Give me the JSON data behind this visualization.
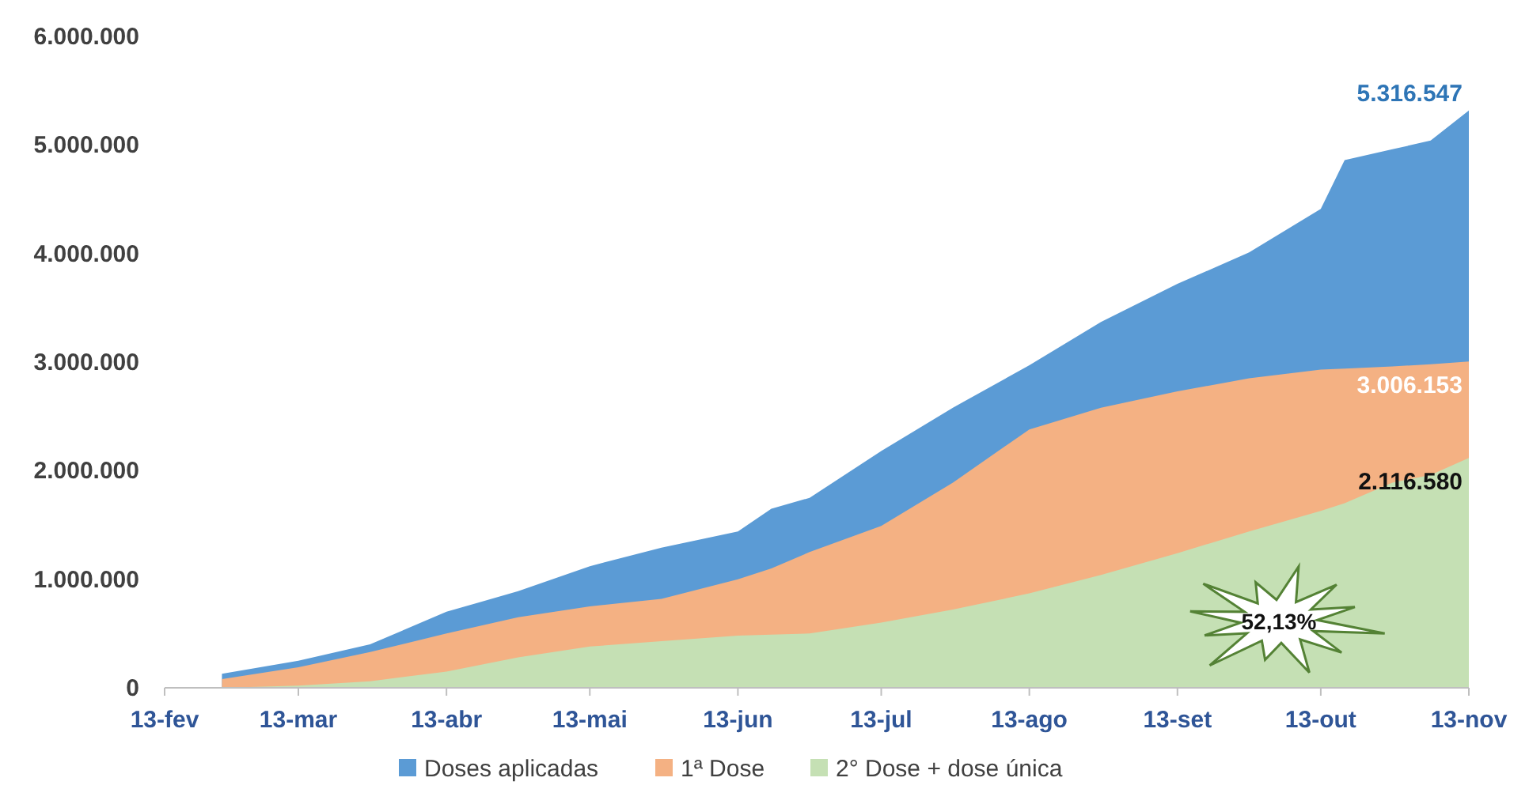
{
  "chart_data": {
    "type": "area",
    "x": [
      "--02-25",
      "--03-13",
      "--03-28",
      "--04-13",
      "--04-28",
      "--05-13",
      "--05-28",
      "--06-13",
      "--06-20",
      "--06-28",
      "--07-13",
      "--07-28",
      "--08-13",
      "--08-28",
      "--09-13",
      "--09-28",
      "--10-13",
      "--10-18",
      "--10-28",
      "--11-05",
      "--11-13"
    ],
    "xlim": [
      "--02-13",
      "--11-13"
    ],
    "xticks": [
      {
        "value": "--02-13",
        "label": "13-fev"
      },
      {
        "value": "--03-13",
        "label": "13-mar"
      },
      {
        "value": "--04-13",
        "label": "13-abr"
      },
      {
        "value": "--05-13",
        "label": "13-mai"
      },
      {
        "value": "--06-13",
        "label": "13-jun"
      },
      {
        "value": "--07-13",
        "label": "13-jul"
      },
      {
        "value": "--08-13",
        "label": "13-ago"
      },
      {
        "value": "--09-13",
        "label": "13-set"
      },
      {
        "value": "--10-13",
        "label": "13-out"
      },
      {
        "value": "--11-13",
        "label": "13-nov"
      }
    ],
    "ylim": [
      0,
      6000000
    ],
    "yticks": [
      {
        "value": 0,
        "label": "0"
      },
      {
        "value": 1000000,
        "label": "1.000.000"
      },
      {
        "value": 2000000,
        "label": "2.000.000"
      },
      {
        "value": 3000000,
        "label": "3.000.000"
      },
      {
        "value": 4000000,
        "label": "4.000.000"
      },
      {
        "value": 5000000,
        "label": "5.000.000"
      },
      {
        "value": 6000000,
        "label": "6.000.000"
      }
    ],
    "series": [
      {
        "name": "Doses aplicadas",
        "color": "#5b9bd5",
        "values": [
          130000,
          250000,
          400000,
          700000,
          890000,
          1120000,
          1290000,
          1440000,
          1650000,
          1750000,
          2180000,
          2580000,
          2970000,
          3370000,
          3720000,
          4010000,
          4410000,
          4860000,
          4960000,
          5040000,
          5316547
        ],
        "value_labels": [
          null,
          null,
          null,
          null,
          null,
          null,
          null,
          null,
          null,
          null,
          null,
          null,
          null,
          null,
          null,
          null,
          null,
          null,
          null,
          null,
          "5.316.547"
        ]
      },
      {
        "name": "1ª Dose",
        "color": "#f4b183",
        "values": [
          80000,
          190000,
          330000,
          500000,
          650000,
          750000,
          820000,
          1000000,
          1100000,
          1250000,
          1490000,
          1890000,
          2380000,
          2580000,
          2730000,
          2850000,
          2930000,
          2940000,
          2960000,
          2980000,
          3006153
        ],
        "value_labels": [
          null,
          null,
          null,
          null,
          null,
          null,
          null,
          null,
          null,
          null,
          null,
          null,
          null,
          null,
          null,
          null,
          null,
          null,
          null,
          null,
          "3.006.153"
        ]
      },
      {
        "name": "2° Dose + dose única",
        "color": "#c5e0b4",
        "values": [
          0,
          20000,
          60000,
          150000,
          280000,
          380000,
          430000,
          480000,
          490000,
          500000,
          600000,
          720000,
          870000,
          1040000,
          1240000,
          1440000,
          1630000,
          1700000,
          1890000,
          1960000,
          2116580
        ],
        "value_labels": [
          null,
          null,
          null,
          null,
          null,
          null,
          null,
          null,
          null,
          null,
          null,
          null,
          null,
          null,
          null,
          null,
          null,
          null,
          null,
          null,
          "2.116.580"
        ]
      }
    ],
    "annotations": [
      "52,13%"
    ],
    "legend": "bottom",
    "grid": false
  }
}
